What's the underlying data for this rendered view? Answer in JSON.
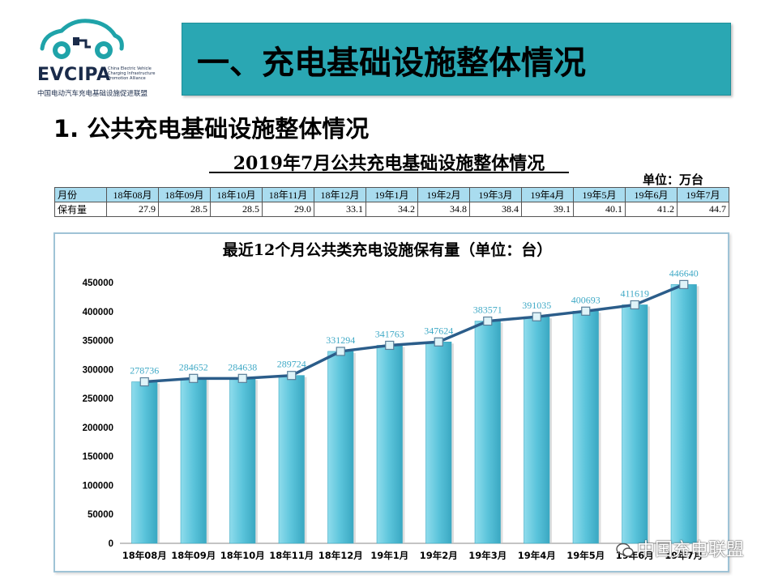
{
  "logo": {
    "name": "EVCIPA",
    "subtitle_lines": [
      "China Electric Vehicle",
      "Charging Infrastructure",
      "Promotion Alliance"
    ],
    "chinese_name": "中国电动汽车充电基础设施促进联盟"
  },
  "header": {
    "title": "一、充电基础设施整体情况"
  },
  "section": {
    "heading": "1. 公共充电基础设施整体情况"
  },
  "table": {
    "title": "2019年7月公共充电基础设施整体情况",
    "unit": "单位：万台",
    "row_headers": [
      "月份",
      "保有量"
    ],
    "months": [
      "18年08月",
      "18年09月",
      "18年10月",
      "18年11月",
      "18年12月",
      "19年1月",
      "19年2月",
      "19年3月",
      "19年4月",
      "19年5月",
      "19年6月",
      "19年7月"
    ],
    "values": [
      "27.9",
      "28.5",
      "28.5",
      "29.0",
      "33.1",
      "34.2",
      "34.8",
      "38.4",
      "39.1",
      "40.1",
      "41.2",
      "44.7"
    ],
    "header_color": "#a9dcef"
  },
  "chart_data": {
    "type": "bar",
    "title": "最近12个月公共类充电设施保有量（单位：台）",
    "categories": [
      "18年08月",
      "18年09月",
      "18年10月",
      "18年11月",
      "18年12月",
      "19年1月",
      "19年2月",
      "19年3月",
      "19年4月",
      "19年5月",
      "19年6月",
      "19年7月"
    ],
    "values": [
      278736,
      284652,
      284638,
      289724,
      331294,
      341763,
      347624,
      383571,
      391035,
      400693,
      411619,
      446640
    ],
    "ylim": [
      0,
      450000
    ],
    "yticks": [
      0,
      50000,
      100000,
      150000,
      200000,
      250000,
      300000,
      350000,
      400000,
      450000
    ],
    "xlabel": "",
    "ylabel": "",
    "bar_color": "#5bc4db",
    "line_color": "#2b5d8a",
    "label_color": "#3fa9c6",
    "grid": false,
    "overlay": "line with square markers connecting bar tops"
  },
  "watermark": {
    "text": "中国充电联盟"
  }
}
